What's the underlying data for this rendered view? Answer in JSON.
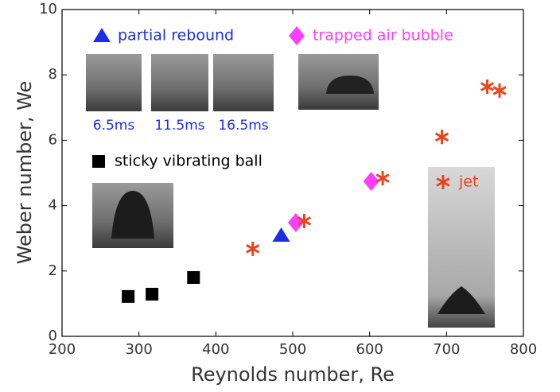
{
  "chart_data": {
    "type": "scatter",
    "x_label": "Reynolds number, Re",
    "y_label": "Weber number, We",
    "xlim": [
      200,
      800
    ],
    "xticks": [
      200,
      300,
      400,
      500,
      600,
      700,
      800
    ],
    "ylim": [
      0,
      10
    ],
    "yticks": [
      0,
      2,
      4,
      6,
      8,
      10
    ],
    "annotations": [
      "6.5ms",
      "11.5ms",
      "16.5ms"
    ],
    "series": [
      {
        "name": "partial rebound",
        "color": "#1a2ee6",
        "marker": "triangle",
        "x": [
          485
        ],
        "values": [
          3.09
        ]
      },
      {
        "name": "trapped air bubble",
        "color": "#ff3dff",
        "marker": "diamond",
        "x": [
          504,
          602
        ],
        "values": [
          3.48,
          4.74
        ]
      },
      {
        "name": "sticky vibrating ball",
        "color": "#000000",
        "marker": "square",
        "x": [
          286,
          317,
          371
        ],
        "values": [
          1.22,
          1.29,
          1.8
        ]
      },
      {
        "name": "jet",
        "color": "#e8461c",
        "marker": "asterisk",
        "x": [
          448,
          515,
          617,
          694,
          753,
          769
        ],
        "values": [
          2.68,
          3.53,
          4.84,
          6.1,
          7.64,
          7.52
        ]
      }
    ]
  }
}
